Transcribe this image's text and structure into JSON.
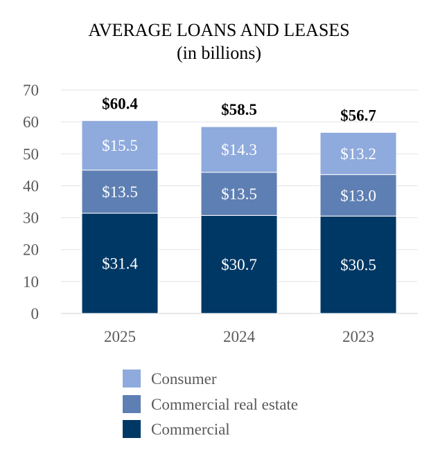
{
  "chart_data": {
    "type": "bar",
    "stacked": true,
    "title": "AVERAGE LOANS AND LEASES",
    "subtitle": "(in billions)",
    "categories": [
      "2025",
      "2024",
      "2023"
    ],
    "series": [
      {
        "name": "Commercial",
        "color": "#003865",
        "values": [
          31.4,
          30.7,
          30.5
        ],
        "labels": [
          "$31.4",
          "$30.7",
          "$30.5"
        ]
      },
      {
        "name": "Commercial real estate",
        "color": "#5e7fb3",
        "values": [
          13.5,
          13.5,
          13.0
        ],
        "labels": [
          "$13.5",
          "$13.5",
          "$13.0"
        ]
      },
      {
        "name": "Consumer",
        "color": "#8faadc",
        "values": [
          15.5,
          14.3,
          13.2
        ],
        "labels": [
          "$15.5",
          "$14.3",
          "$13.2"
        ]
      }
    ],
    "totals": [
      60.4,
      58.5,
      56.7
    ],
    "total_labels": [
      "$60.4",
      "$58.5",
      "$56.7"
    ],
    "ylim": [
      0,
      70
    ],
    "yticks": [
      0,
      10,
      20,
      30,
      40,
      50,
      60,
      70
    ],
    "grid": true,
    "legend": {
      "position": "bottom",
      "entries": [
        "Consumer",
        "Commercial real estate",
        "Commercial"
      ]
    }
  }
}
